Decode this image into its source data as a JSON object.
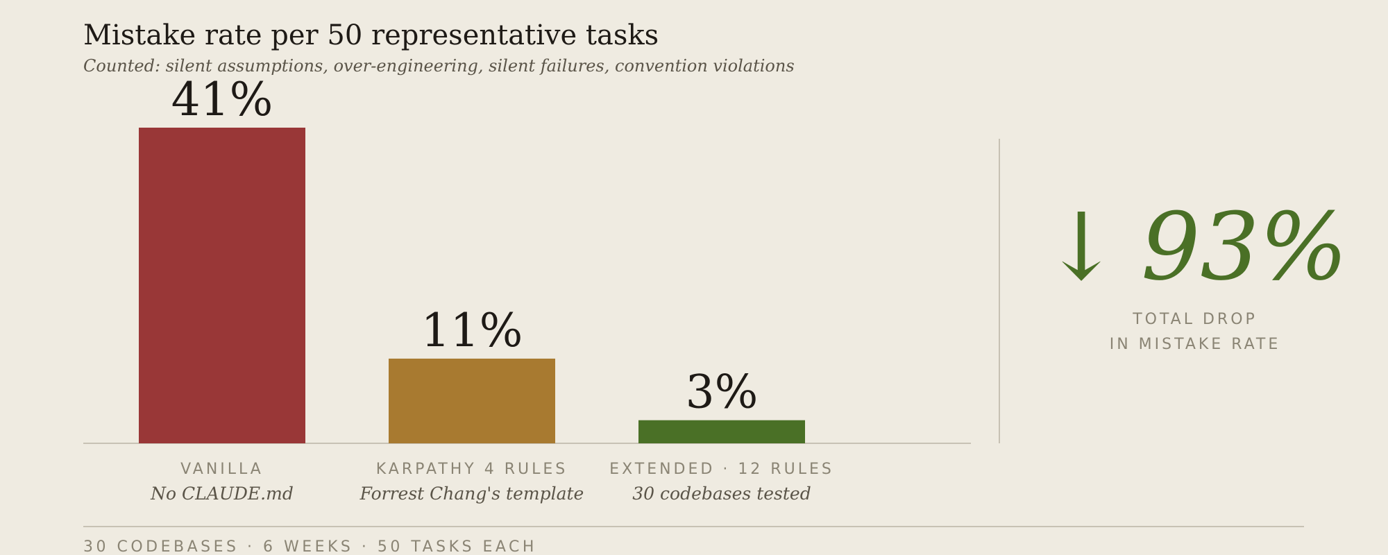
{
  "chart_data": {
    "type": "bar",
    "title": "Mistake rate per 50 representative tasks",
    "subtitle": "Counted: silent assumptions, over-engineering, silent failures, convention violations",
    "categories": [
      "VANILLA",
      "KARPATHY 4 RULES",
      "EXTENDED · 12 RULES"
    ],
    "sublabels": [
      "No CLAUDE.md",
      "Forrest Chang's template",
      "30 codebases tested"
    ],
    "values": [
      41,
      11,
      3
    ],
    "value_labels": [
      "41%",
      "11%",
      "3%"
    ],
    "colors": [
      "#993737",
      "#a87a30",
      "#4a7026"
    ],
    "ylim": [
      0,
      41
    ],
    "callout": {
      "arrow": "↓",
      "value": "93%",
      "label": [
        "TOTAL DROP",
        "IN MISTAKE RATE"
      ],
      "color": "#4a7026"
    },
    "footer": "30 CODEBASES · 6 WEEKS · 50 TASKS EACH"
  }
}
